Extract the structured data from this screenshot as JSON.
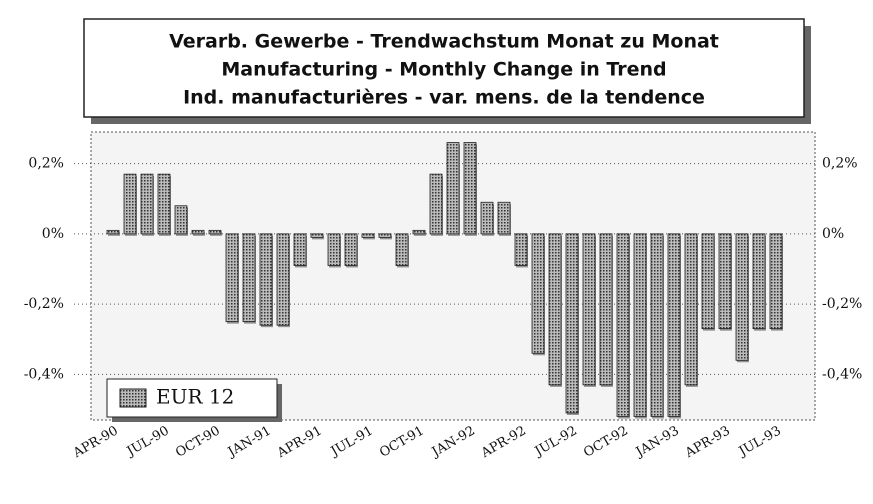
{
  "chart_data": {
    "type": "bar",
    "title": [
      "Verarb. Gewerbe - Trendwachstum Monat zu Monat",
      "Manufacturing - Monthly Change in Trend",
      "Ind. manufacturières - var. mens. de la tendence"
    ],
    "categories": [
      "APR-90",
      null,
      null,
      "JUL-90",
      null,
      null,
      "OCT-90",
      null,
      null,
      "JAN-91",
      null,
      null,
      "APR-91",
      null,
      null,
      "JUL-91",
      null,
      null,
      "OCT-91",
      null,
      null,
      "JAN-92",
      null,
      null,
      "APR-92",
      null,
      null,
      "JUL-92",
      null,
      null,
      "OCT-92",
      null,
      null,
      "JAN-93",
      null,
      null,
      "APR-93",
      null,
      null,
      "JUL-93"
    ],
    "series": [
      {
        "name": "EUR 12",
        "color": "#7a7a7a",
        "values": [
          0.01,
          0.17,
          0.17,
          0.17,
          0.08,
          0.01,
          0.01,
          -0.25,
          -0.25,
          -0.26,
          -0.26,
          -0.09,
          -0.01,
          -0.09,
          -0.09,
          -0.01,
          -0.01,
          -0.09,
          0.01,
          0.17,
          0.26,
          0.26,
          0.09,
          0.09,
          -0.09,
          -0.34,
          -0.43,
          -0.51,
          -0.43,
          -0.43,
          -0.52,
          -0.52,
          -0.52,
          -0.52,
          -0.43,
          -0.27,
          -0.27,
          -0.36,
          -0.27,
          -0.27
        ]
      }
    ],
    "ylim": [
      -0.53,
      0.29
    ],
    "yticks": [
      {
        "value": 0.2,
        "label": "0,2%"
      },
      {
        "value": 0,
        "label": "0%"
      },
      {
        "value": -0.2,
        "label": "-0,2%"
      },
      {
        "value": -0.4,
        "label": "-0,4%"
      }
    ],
    "y2lim": [
      -0.53,
      0.29
    ],
    "y2ticks": [
      {
        "value": 0.2,
        "label": "0,2%"
      },
      {
        "value": 0,
        "label": "0%"
      },
      {
        "value": -0.2,
        "label": "-0,2%"
      },
      {
        "value": -0.4,
        "label": "-0,4%"
      }
    ],
    "grid": true,
    "legend": "lower left"
  }
}
